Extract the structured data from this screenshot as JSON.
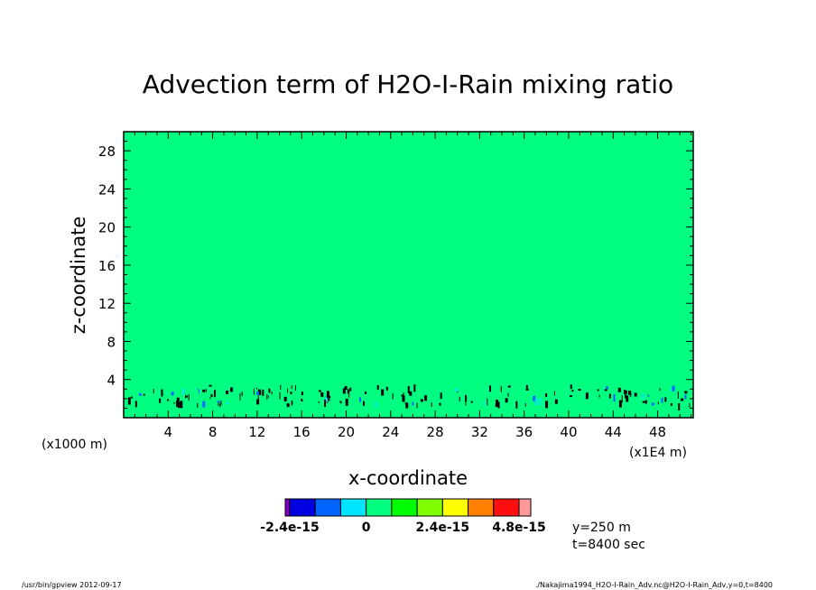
{
  "chart_data": {
    "type": "heatmap",
    "title": "Advection term of H2O-I-Rain mixing ratio",
    "xlabel": "x-coordinate",
    "ylabel": "z-coordinate",
    "x_unit_left": "(x1000 m)",
    "x_unit_right": "(x1E4 m)",
    "xlim": [
      0,
      51.2
    ],
    "ylim": [
      0,
      30
    ],
    "xticks": [
      4,
      8,
      12,
      16,
      20,
      24,
      28,
      32,
      36,
      40,
      44,
      48
    ],
    "yticks": [
      4,
      8,
      12,
      16,
      20,
      24,
      28
    ],
    "background_value_color": "#00ff80",
    "feature_band_z": [
      1.5,
      3.5
    ],
    "colorbar": {
      "colors": [
        "#7f00bf",
        "#0000e0",
        "#0064ff",
        "#00e5ff",
        "#00ff80",
        "#00ff00",
        "#80ff00",
        "#ffff00",
        "#ff8000",
        "#ff1010",
        "#ff9999"
      ],
      "labels": [
        {
          "text": "-2.4e-15",
          "value": -2.4e-15
        },
        {
          "text": "0",
          "value": 0
        },
        {
          "text": "2.4e-15",
          "value": 2.4e-15
        },
        {
          "text": "4.8e-15",
          "value": 4.8e-15
        }
      ],
      "levels": [
        -2.4e-15,
        -1.6e-15,
        -8e-16,
        0,
        8e-16,
        1.6e-15,
        2.4e-15,
        3.2e-15,
        4e-15,
        4.8e-15
      ]
    },
    "annotations": [
      "y=250 m",
      "t=8400 sec"
    ]
  },
  "footer": {
    "left": "/usr/bin/gpview  2012-09-17",
    "right": "./Nakajima1994_H2O-I-Rain_Adv.nc@H2O-I-Rain_Adv,y=0,t=8400"
  }
}
